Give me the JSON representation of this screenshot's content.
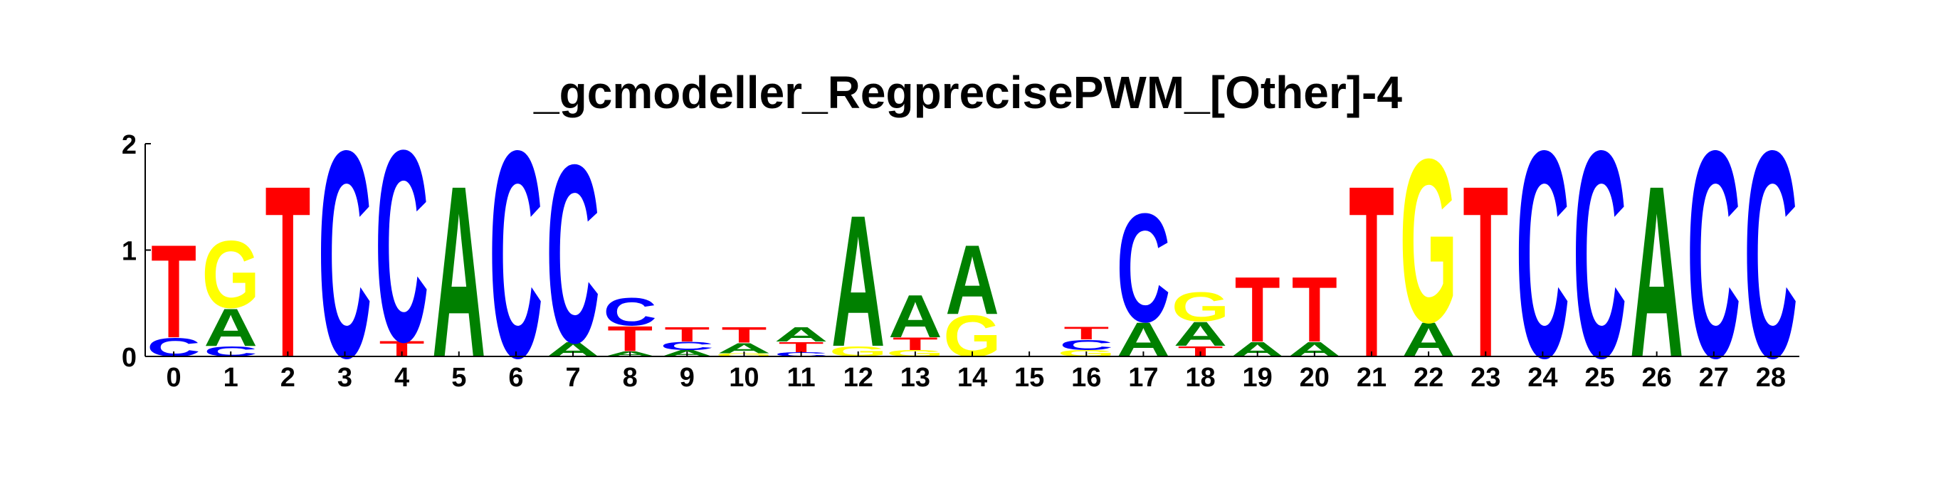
{
  "chart_data": {
    "type": "sequence-logo",
    "title": "_gcmodeller_RegprecisePWM_[Other]-4",
    "xlabel": "",
    "ylabel": "",
    "ylim": [
      0,
      2
    ],
    "y_ticks": [
      "0",
      "1",
      "2"
    ],
    "positions": [
      "0",
      "1",
      "2",
      "3",
      "4",
      "5",
      "6",
      "7",
      "8",
      "9",
      "10",
      "11",
      "12",
      "13",
      "14",
      "15",
      "16",
      "17",
      "18",
      "19",
      "20",
      "21",
      "22",
      "23",
      "24",
      "25",
      "26",
      "27",
      "28"
    ],
    "colors": {
      "A": "#008000",
      "C": "#0000ff",
      "G": "#ffff00",
      "T": "#ff0000"
    },
    "stacks": [
      [
        {
          "base": "C",
          "height": 0.18
        },
        {
          "base": "T",
          "height": 0.9
        }
      ],
      [
        {
          "base": "C",
          "height": 0.1
        },
        {
          "base": "A",
          "height": 0.36
        },
        {
          "base": "G",
          "height": 0.65
        }
      ],
      [
        {
          "base": "T",
          "height": 1.66
        }
      ],
      [
        {
          "base": "C",
          "height": 2.0
        }
      ],
      [
        {
          "base": "T",
          "height": 0.15
        },
        {
          "base": "C",
          "height": 1.85
        }
      ],
      [
        {
          "base": "A",
          "height": 1.66
        }
      ],
      [
        {
          "base": "C",
          "height": 2.0
        }
      ],
      [
        {
          "base": "A",
          "height": 0.14
        },
        {
          "base": "C",
          "height": 1.72
        }
      ],
      [
        {
          "base": "A",
          "height": 0.05
        },
        {
          "base": "T",
          "height": 0.24
        },
        {
          "base": "C",
          "height": 0.27
        }
      ],
      [
        {
          "base": "A",
          "height": 0.06
        },
        {
          "base": "C",
          "height": 0.08
        },
        {
          "base": "T",
          "height": 0.14
        }
      ],
      [
        {
          "base": "G",
          "height": 0.03
        },
        {
          "base": "A",
          "height": 0.1
        },
        {
          "base": "T",
          "height": 0.15
        }
      ],
      [
        {
          "base": "C",
          "height": 0.04
        },
        {
          "base": "T",
          "height": 0.1
        },
        {
          "base": "A",
          "height": 0.14
        }
      ],
      [
        {
          "base": "G",
          "height": 0.1
        },
        {
          "base": "A",
          "height": 1.27
        }
      ],
      [
        {
          "base": "G",
          "height": 0.06
        },
        {
          "base": "T",
          "height": 0.12
        },
        {
          "base": "A",
          "height": 0.41
        }
      ],
      [
        {
          "base": "G",
          "height": 0.4
        },
        {
          "base": "A",
          "height": 0.67
        }
      ],
      [],
      [
        {
          "base": "G",
          "height": 0.06
        },
        {
          "base": "C",
          "height": 0.1
        },
        {
          "base": "T",
          "height": 0.12
        }
      ],
      [
        {
          "base": "A",
          "height": 0.33
        },
        {
          "base": "C",
          "height": 1.05
        }
      ],
      [
        {
          "base": "T",
          "height": 0.1
        },
        {
          "base": "A",
          "height": 0.23
        },
        {
          "base": "G",
          "height": 0.28
        }
      ],
      [
        {
          "base": "A",
          "height": 0.14
        },
        {
          "base": "T",
          "height": 0.63
        }
      ],
      [
        {
          "base": "A",
          "height": 0.14
        },
        {
          "base": "T",
          "height": 0.63
        }
      ],
      [
        {
          "base": "T",
          "height": 1.66
        }
      ],
      [
        {
          "base": "A",
          "height": 0.33
        },
        {
          "base": "G",
          "height": 1.58
        }
      ],
      [
        {
          "base": "T",
          "height": 1.66
        }
      ],
      [
        {
          "base": "C",
          "height": 2.0
        }
      ],
      [
        {
          "base": "C",
          "height": 2.0
        }
      ],
      [
        {
          "base": "A",
          "height": 1.66
        }
      ],
      [
        {
          "base": "C",
          "height": 2.0
        }
      ],
      [
        {
          "base": "C",
          "height": 2.0
        }
      ]
    ]
  }
}
